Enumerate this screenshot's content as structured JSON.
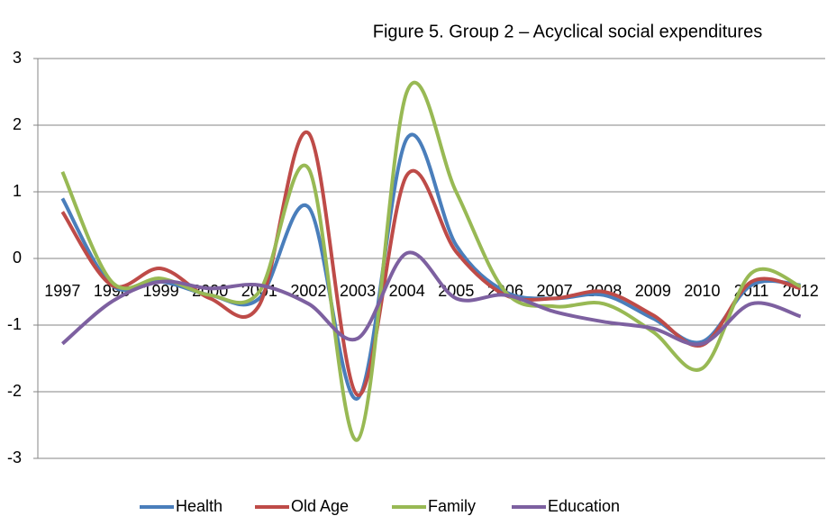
{
  "chart_data": {
    "type": "line",
    "title": "Figure 5. Group 2 – Acyclical social expenditures",
    "categories": [
      "1997",
      "1998",
      "1999",
      "2000",
      "2001",
      "2002",
      "2003",
      "2004",
      "2005",
      "2006",
      "2007",
      "2008",
      "2009",
      "2010",
      "2011",
      "2012"
    ],
    "series": [
      {
        "name": "Health",
        "color": "#4a7ebb",
        "values": [
          0.9,
          -0.4,
          -0.35,
          -0.55,
          -0.6,
          0.77,
          -2.1,
          1.8,
          0.2,
          -0.5,
          -0.6,
          -0.55,
          -0.9,
          -1.25,
          -0.4,
          -0.4
        ]
      },
      {
        "name": "Old Age",
        "color": "#be4b48",
        "values": [
          0.7,
          -0.4,
          -0.15,
          -0.6,
          -0.7,
          1.88,
          -2.05,
          1.25,
          0.1,
          -0.55,
          -0.6,
          -0.5,
          -0.85,
          -1.3,
          -0.35,
          -0.45
        ]
      },
      {
        "name": "Family",
        "color": "#98b954",
        "values": [
          1.3,
          -0.35,
          -0.3,
          -0.55,
          -0.5,
          1.35,
          -2.72,
          2.5,
          1.0,
          -0.5,
          -0.72,
          -0.68,
          -1.1,
          -1.65,
          -0.22,
          -0.42
        ]
      },
      {
        "name": "Education",
        "color": "#7d60a0",
        "values": [
          -1.28,
          -0.65,
          -0.35,
          -0.45,
          -0.4,
          -0.68,
          -1.2,
          0.08,
          -0.6,
          -0.55,
          -0.8,
          -0.95,
          -1.05,
          -1.28,
          -0.68,
          -0.87
        ]
      }
    ],
    "ylim": [
      -3,
      3
    ],
    "yticks": [
      -3,
      -2,
      -1,
      0,
      1,
      2,
      3
    ],
    "grid": true,
    "legend": "bottom"
  }
}
